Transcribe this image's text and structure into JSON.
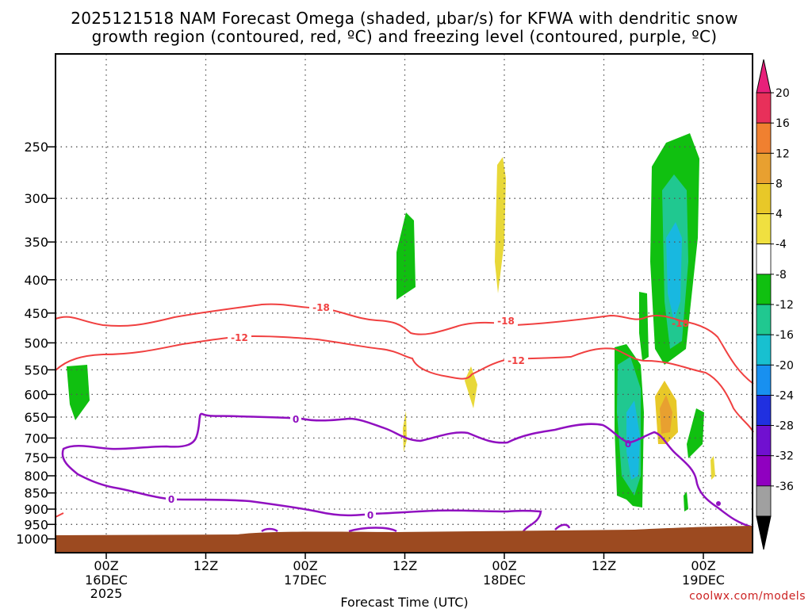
{
  "chart_data": {
    "type": "time-height",
    "title_line1": "2025121518 NAM Forecast Omega (shaded, μbar/s) for KFWA with dendritic snow",
    "title_line2": "growth region (contoured, red, ºC) and freezing level (contoured, purple, ºC)",
    "xlabel": "Forecast Time (UTC)",
    "credit": "coolwx.com/models",
    "y_axis": {
      "units": "mb",
      "scale": "log",
      "range": [
        1050,
        180
      ],
      "ticks": [
        "250",
        "300",
        "350",
        "400",
        "450",
        "500",
        "550",
        "600",
        "650",
        "700",
        "750",
        "800",
        "850",
        "900",
        "950",
        "1000"
      ]
    },
    "x_axis": {
      "ticks": [
        {
          "label": "00Z",
          "sub1": "16DEC",
          "sub2": "2025"
        },
        {
          "label": "12Z",
          "sub1": "",
          "sub2": ""
        },
        {
          "label": "00Z",
          "sub1": "17DEC",
          "sub2": ""
        },
        {
          "label": "12Z",
          "sub1": "",
          "sub2": ""
        },
        {
          "label": "00Z",
          "sub1": "18DEC",
          "sub2": ""
        },
        {
          "label": "12Z",
          "sub1": "",
          "sub2": ""
        },
        {
          "label": "00Z",
          "sub1": "19DEC",
          "sub2": ""
        }
      ]
    },
    "colorbar": {
      "labels": [
        "20",
        "16",
        "12",
        "8",
        "4",
        "-4",
        "-8",
        "-12",
        "-16",
        "-20",
        "-24",
        "-28",
        "-32",
        "-36"
      ],
      "colors": [
        "#e8305a",
        "#f08030",
        "#e8a030",
        "#e8c828",
        "#f0e040",
        "#ffffff",
        "#10c010",
        "#20c890",
        "#18c0d0",
        "#1890f0",
        "#2030e0",
        "#7010d0",
        "#9000c0",
        "#a0a0a0"
      ],
      "arrow_top_color": "#e8207a",
      "arrow_bottom_color": "#000000"
    },
    "contour_labels": {
      "dgz_a": "-18",
      "dgz_b": "-12",
      "dgz_c": "-18",
      "dgz_d": "-12",
      "dgz_e": "-18",
      "frz_a": "0",
      "frz_b": "0",
      "frz_c": "0",
      "frz_d": "0"
    },
    "colors": {
      "dgz": "#f04040",
      "freezing": "#9010c0",
      "terrain": "#9c4a20",
      "grid": "#555555"
    }
  }
}
